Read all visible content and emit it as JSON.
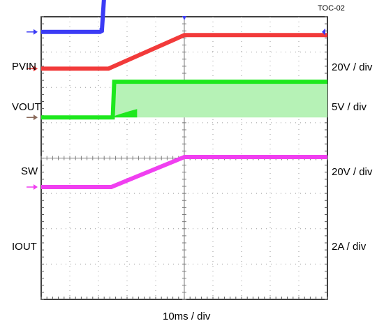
{
  "figure_id": "TOC-02",
  "chart_data": {
    "type": "line",
    "xlabel": "10ms / div",
    "x_divisions": 10,
    "y_divisions": 8,
    "grid": true,
    "legend": "channel labels on left, scale labels on right",
    "x_unit": "div",
    "series": [
      {
        "name": "PVIN",
        "scale": "20V / div",
        "color": "#3b3bf5",
        "x": [
          0,
          2.05,
          2.12,
          2.2,
          10
        ],
        "y": [
          7.57,
          7.57,
          7.6,
          8.58,
          8.58
        ]
      },
      {
        "name": "VOUT",
        "scale": "5V / div",
        "color": "#f23a3a",
        "x": [
          0,
          2.35,
          5,
          10
        ],
        "y": [
          6.53,
          6.53,
          7.48,
          7.48
        ]
      },
      {
        "name": "SW",
        "scale": "20V / div",
        "color": "#1ee81e",
        "x": [
          0,
          2.5,
          2.55,
          10
        ],
        "y": [
          5.15,
          5.15,
          6.16,
          6.16
        ],
        "baseline": 5.15
      },
      {
        "name": "IOUT",
        "scale": "2A / div",
        "color": "#f03ff0",
        "x": [
          0,
          2.45,
          5,
          10
        ],
        "y": [
          3.18,
          3.18,
          4.03,
          4.03
        ]
      }
    ]
  }
}
